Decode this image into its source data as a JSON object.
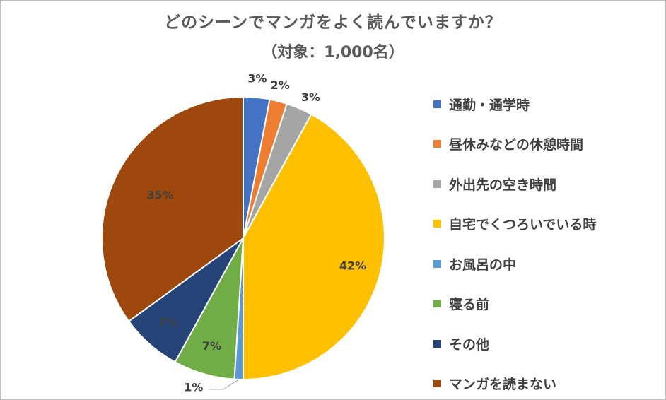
{
  "chart_data": {
    "type": "pie",
    "title": "どのシーンでマンガをよく読んでいますか？",
    "subtitle": "（対象：1,000名）",
    "legend_position": "right",
    "series": [
      {
        "name": "通勤・通学時",
        "value": 3,
        "label": "3%",
        "color": "#4472C4"
      },
      {
        "name": "昼休みなどの休憩時間",
        "value": 2,
        "label": "2%",
        "color": "#ED7D31"
      },
      {
        "name": "外出先の空き時間",
        "value": 3,
        "label": "3%",
        "color": "#A5A5A5"
      },
      {
        "name": "自宅でくつろいでいる時",
        "value": 42,
        "label": "42%",
        "color": "#FFC000"
      },
      {
        "name": "お風呂の中",
        "value": 1,
        "label": "1%",
        "color": "#5B9BD5"
      },
      {
        "name": "寝る前",
        "value": 7,
        "label": "7%",
        "color": "#70AD47"
      },
      {
        "name": "その他",
        "value": 7,
        "label": "7%",
        "color": "#264478"
      },
      {
        "name": "マンガを読まない",
        "value": 35,
        "label": "35%",
        "color": "#9E480E"
      }
    ]
  }
}
